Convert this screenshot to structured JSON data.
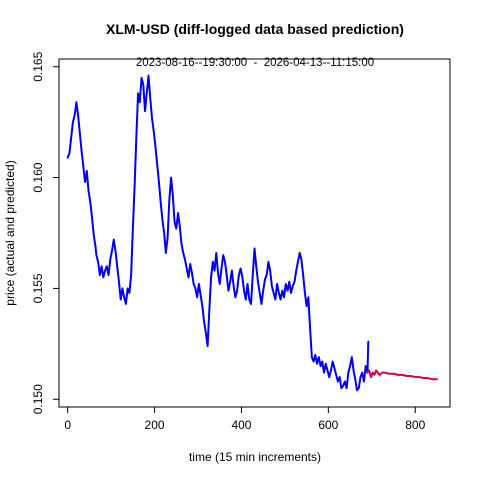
{
  "chart_data": {
    "type": "line",
    "title": "XLM-USD (diff-logged data based prediction)",
    "subtitle": "2023-08-16--19:30:00  -  2026-04-13--11:15:00",
    "xlabel": "time (15 min increments)",
    "ylabel": "price (actual and predicted)",
    "xlim": [
      -20,
      880
    ],
    "ylim": [
      0.14965,
      0.16535
    ],
    "xticks": [
      0,
      200,
      400,
      600,
      800
    ],
    "yticks": [
      0.15,
      0.155,
      0.16,
      0.165
    ],
    "xtick_labels": [
      "0",
      "200",
      "400",
      "600",
      "800"
    ],
    "ytick_labels": [
      "0.150",
      "0.155",
      "0.160",
      "0.165"
    ],
    "grid": false,
    "legend": "none",
    "series": [
      {
        "role": "actual",
        "color": "#0000ee",
        "points": [
          [
            0,
            0.1609
          ],
          [
            4,
            0.1611
          ],
          [
            8,
            0.1618
          ],
          [
            12,
            0.1625
          ],
          [
            16,
            0.1628
          ],
          [
            20,
            0.1634
          ],
          [
            24,
            0.1628
          ],
          [
            28,
            0.162
          ],
          [
            32,
            0.1612
          ],
          [
            36,
            0.1605
          ],
          [
            40,
            0.1598
          ],
          [
            44,
            0.1603
          ],
          [
            48,
            0.1594
          ],
          [
            52,
            0.1589
          ],
          [
            56,
            0.1582
          ],
          [
            60,
            0.1574
          ],
          [
            64,
            0.1569
          ],
          [
            66,
            0.1565
          ],
          [
            70,
            0.1562
          ],
          [
            74,
            0.1556
          ],
          [
            78,
            0.156
          ],
          [
            82,
            0.1555
          ],
          [
            86,
            0.1558
          ],
          [
            90,
            0.156
          ],
          [
            94,
            0.1556
          ],
          [
            98,
            0.1563
          ],
          [
            102,
            0.1567
          ],
          [
            106,
            0.1572
          ],
          [
            110,
            0.1567
          ],
          [
            114,
            0.156
          ],
          [
            118,
            0.1553
          ],
          [
            122,
            0.1545
          ],
          [
            126,
            0.155
          ],
          [
            130,
            0.1546
          ],
          [
            134,
            0.1543
          ],
          [
            138,
            0.155
          ],
          [
            142,
            0.1548
          ],
          [
            146,
            0.1556
          ],
          [
            150,
            0.1577
          ],
          [
            154,
            0.1596
          ],
          [
            158,
            0.1618
          ],
          [
            162,
            0.1638
          ],
          [
            166,
            0.1634
          ],
          [
            170,
            0.1645
          ],
          [
            174,
            0.1642
          ],
          [
            178,
            0.163
          ],
          [
            182,
            0.1638
          ],
          [
            186,
            0.1646
          ],
          [
            190,
            0.1636
          ],
          [
            194,
            0.1627
          ],
          [
            198,
            0.1621
          ],
          [
            202,
            0.1614
          ],
          [
            206,
            0.1606
          ],
          [
            210,
            0.1598
          ],
          [
            214,
            0.1589
          ],
          [
            218,
            0.1581
          ],
          [
            222,
            0.1575
          ],
          [
            226,
            0.1566
          ],
          [
            230,
            0.1573
          ],
          [
            234,
            0.159
          ],
          [
            238,
            0.16
          ],
          [
            242,
            0.1592
          ],
          [
            246,
            0.158
          ],
          [
            250,
            0.1577
          ],
          [
            254,
            0.1584
          ],
          [
            258,
            0.1578
          ],
          [
            262,
            0.157
          ],
          [
            266,
            0.1566
          ],
          [
            270,
            0.1563
          ],
          [
            274,
            0.1559
          ],
          [
            278,
            0.1555
          ],
          [
            282,
            0.1561
          ],
          [
            286,
            0.1557
          ],
          [
            290,
            0.1552
          ],
          [
            294,
            0.155
          ],
          [
            298,
            0.1546
          ],
          [
            302,
            0.1552
          ],
          [
            306,
            0.1547
          ],
          [
            310,
            0.1542
          ],
          [
            314,
            0.1535
          ],
          [
            318,
            0.153
          ],
          [
            322,
            0.1524
          ],
          [
            326,
            0.154
          ],
          [
            330,
            0.1555
          ],
          [
            334,
            0.1562
          ],
          [
            338,
            0.1558
          ],
          [
            342,
            0.1566
          ],
          [
            346,
            0.1557
          ],
          [
            350,
            0.1552
          ],
          [
            354,
            0.1559
          ],
          [
            358,
            0.1565
          ],
          [
            362,
            0.1562
          ],
          [
            366,
            0.1556
          ],
          [
            370,
            0.1549
          ],
          [
            374,
            0.1553
          ],
          [
            378,
            0.1558
          ],
          [
            382,
            0.1551
          ],
          [
            386,
            0.1546
          ],
          [
            390,
            0.1549
          ],
          [
            394,
            0.1556
          ],
          [
            398,
            0.1559
          ],
          [
            402,
            0.1555
          ],
          [
            406,
            0.1549
          ],
          [
            410,
            0.1545
          ],
          [
            414,
            0.1552
          ],
          [
            418,
            0.1545
          ],
          [
            422,
            0.1543
          ],
          [
            426,
            0.1556
          ],
          [
            430,
            0.1568
          ],
          [
            434,
            0.156
          ],
          [
            438,
            0.1553
          ],
          [
            442,
            0.1548
          ],
          [
            446,
            0.1543
          ],
          [
            450,
            0.1549
          ],
          [
            454,
            0.1554
          ],
          [
            458,
            0.1556
          ],
          [
            462,
            0.1562
          ],
          [
            466,
            0.1558
          ],
          [
            470,
            0.1551
          ],
          [
            474,
            0.1548
          ],
          [
            478,
            0.1545
          ],
          [
            482,
            0.1552
          ],
          [
            486,
            0.1548
          ],
          [
            490,
            0.1545
          ],
          [
            494,
            0.1549
          ],
          [
            498,
            0.1546
          ],
          [
            502,
            0.1552
          ],
          [
            506,
            0.1549
          ],
          [
            510,
            0.1553
          ],
          [
            514,
            0.1548
          ],
          [
            518,
            0.1551
          ],
          [
            522,
            0.1553
          ],
          [
            526,
            0.1558
          ],
          [
            530,
            0.1562
          ],
          [
            534,
            0.1566
          ],
          [
            538,
            0.1563
          ],
          [
            542,
            0.1556
          ],
          [
            546,
            0.1548
          ],
          [
            550,
            0.1542
          ],
          [
            554,
            0.1546
          ],
          [
            558,
            0.1532
          ],
          [
            562,
            0.1519
          ],
          [
            566,
            0.1517
          ],
          [
            570,
            0.152
          ],
          [
            574,
            0.1516
          ],
          [
            578,
            0.1519
          ],
          [
            582,
            0.1515
          ],
          [
            586,
            0.1517
          ],
          [
            590,
            0.1512
          ],
          [
            594,
            0.1516
          ],
          [
            598,
            0.1513
          ],
          [
            602,
            0.151
          ],
          [
            606,
            0.1513
          ],
          [
            610,
            0.1517
          ],
          [
            614,
            0.1514
          ],
          [
            618,
            0.1511
          ],
          [
            622,
            0.1508
          ],
          [
            626,
            0.151
          ],
          [
            630,
            0.1505
          ],
          [
            634,
            0.1506
          ],
          [
            638,
            0.1508
          ],
          [
            642,
            0.1505
          ],
          [
            646,
            0.1512
          ],
          [
            650,
            0.1515
          ],
          [
            654,
            0.1519
          ],
          [
            658,
            0.1513
          ],
          [
            662,
            0.1509
          ],
          [
            666,
            0.1504
          ],
          [
            670,
            0.1505
          ],
          [
            674,
            0.151
          ],
          [
            678,
            0.1512
          ],
          [
            682,
            0.1508
          ],
          [
            686,
            0.1515
          ],
          [
            690,
            0.1512
          ],
          [
            692,
            0.1526
          ]
        ]
      },
      {
        "role": "predicted",
        "color": "#d0004a",
        "points": [
          [
            690,
            0.1512
          ],
          [
            694,
            0.1513
          ],
          [
            698,
            0.151
          ],
          [
            702,
            0.1512
          ],
          [
            706,
            0.1511
          ],
          [
            710,
            0.1513
          ],
          [
            714,
            0.1512
          ],
          [
            718,
            0.1511
          ],
          [
            724,
            0.1512
          ],
          [
            730,
            0.1512
          ],
          [
            740,
            0.15115
          ],
          [
            750,
            0.15115
          ],
          [
            760,
            0.1511
          ],
          [
            770,
            0.1511
          ],
          [
            780,
            0.15105
          ],
          [
            790,
            0.15105
          ],
          [
            800,
            0.151
          ],
          [
            810,
            0.151
          ],
          [
            820,
            0.15095
          ],
          [
            830,
            0.15095
          ],
          [
            840,
            0.1509
          ],
          [
            850,
            0.1509
          ]
        ]
      }
    ]
  }
}
